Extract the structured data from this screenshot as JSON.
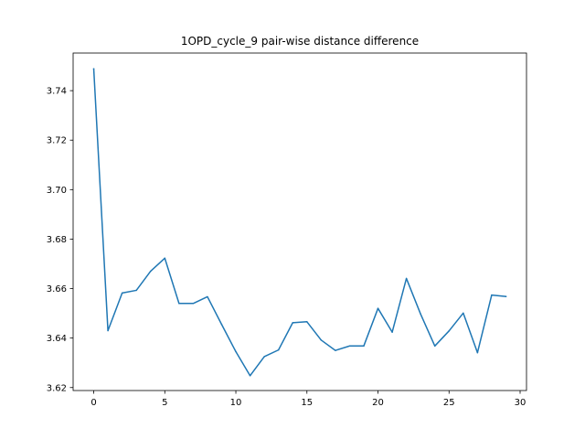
{
  "chart_data": {
    "type": "line",
    "title": "1OPD_cycle_9 pair-wise distance difference",
    "xlabel": "",
    "ylabel": "",
    "xlim": [
      -1.45,
      30.45
    ],
    "ylim": [
      3.6188,
      3.7552
    ],
    "grid": false,
    "xticks": [
      0,
      5,
      10,
      15,
      20,
      25,
      30
    ],
    "xtick_labels": [
      "0",
      "5",
      "10",
      "15",
      "20",
      "25",
      "30"
    ],
    "yticks": [
      3.62,
      3.64,
      3.66,
      3.68,
      3.7,
      3.72,
      3.74
    ],
    "ytick_labels": [
      "3.62",
      "3.64",
      "3.66",
      "3.68",
      "3.70",
      "3.72",
      "3.74"
    ],
    "series": [
      {
        "color": "#1f77b4",
        "x": [
          0,
          1,
          2,
          3,
          4,
          5,
          6,
          7,
          8,
          9,
          10,
          11,
          12,
          13,
          14,
          15,
          16,
          17,
          18,
          19,
          20,
          21,
          22,
          23,
          24,
          25,
          26,
          27,
          28,
          29
        ],
        "y": [
          3.7488,
          3.643,
          3.6582,
          3.6593,
          3.667,
          3.6723,
          3.654,
          3.654,
          3.6567,
          3.6455,
          3.6345,
          3.6248,
          3.6325,
          3.6352,
          3.6462,
          3.6466,
          3.6392,
          3.635,
          3.6368,
          3.6368,
          3.652,
          3.6424,
          3.6641,
          3.6497,
          3.6368,
          3.6429,
          3.6501,
          3.6341,
          3.6574,
          3.6568
        ]
      }
    ]
  }
}
